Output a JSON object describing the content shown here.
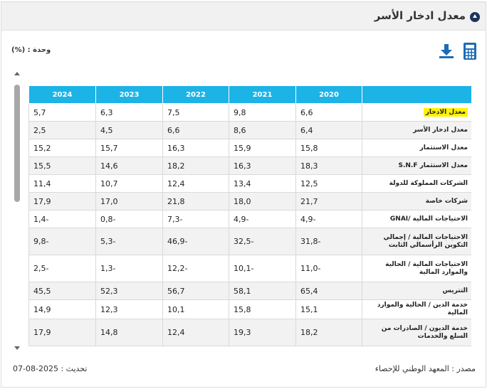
{
  "header": {
    "title": "معدل ادخار الأسر"
  },
  "unit_label": "وحدة : (%)",
  "table": {
    "columns": [
      "2020",
      "2021",
      "2022",
      "2023",
      "2024"
    ],
    "rows": [
      {
        "label": "معدل الادخار",
        "values": [
          "6,6",
          "9,8",
          "7,5",
          "6,3",
          "5,7"
        ]
      },
      {
        "label": "معدل ادخار الأسر",
        "values": [
          "6,4",
          "8,6",
          "6,6",
          "4,5",
          "2,5"
        ]
      },
      {
        "label": "معدل الاستثمار",
        "values": [
          "15,8",
          "15,9",
          "16,3",
          "15,7",
          "15,2"
        ]
      },
      {
        "label": "معدل الاستثمار S.N.F",
        "values": [
          "18,3",
          "16,3",
          "18,2",
          "14,6",
          "15,5"
        ]
      },
      {
        "label": "الشركات المملوكة للدولة",
        "values": [
          "12,5",
          "13,4",
          "12,4",
          "10,7",
          "11,4"
        ]
      },
      {
        "label": "شركات خاصة",
        "values": [
          "21,7",
          "18,0",
          "21,8",
          "17,0",
          "17,9"
        ]
      },
      {
        "label": "الاحتياجات المالية /GNAI",
        "values": [
          "-4,9",
          "-4,9",
          "-7,3",
          "-0,8",
          "-1,4"
        ]
      },
      {
        "label": "الاحتياجات المالية / إجمالي التكوين الرأسمالي الثابت",
        "values": [
          "-31,8",
          "-32,5",
          "-46,9",
          "-5,3",
          "-9,8"
        ]
      },
      {
        "label": "الاحتياجات المالية / الحالية والموارد المالية",
        "values": [
          "-11,0",
          "-10,1",
          "-12,2",
          "-1,3",
          "-2,5"
        ]
      },
      {
        "label": "التتريس",
        "values": [
          "65,4",
          "58,1",
          "56,7",
          "52,3",
          "45,5"
        ]
      },
      {
        "label": "خدمة الدين / الحالية والموارد المالية",
        "values": [
          "15,1",
          "15,8",
          "10,1",
          "12,3",
          "14,9"
        ]
      },
      {
        "label": "خدمة الديون / الصادرات من السلع والخدمات",
        "values": [
          "18,2",
          "19,3",
          "12,4",
          "14,8",
          "17,9"
        ]
      }
    ]
  },
  "footer": {
    "source": "مصدر : المعهد الوطني للإحصاء",
    "update": "تحديث : 2025-08-07"
  },
  "icons": {
    "collapse": "chevron-up-circle-icon",
    "download": "download-icon",
    "calculator": "calculator-icon"
  },
  "colors": {
    "header_row": "#1cb3e6",
    "highlight": "#fff200",
    "icon_blue": "#1e6bb8"
  }
}
